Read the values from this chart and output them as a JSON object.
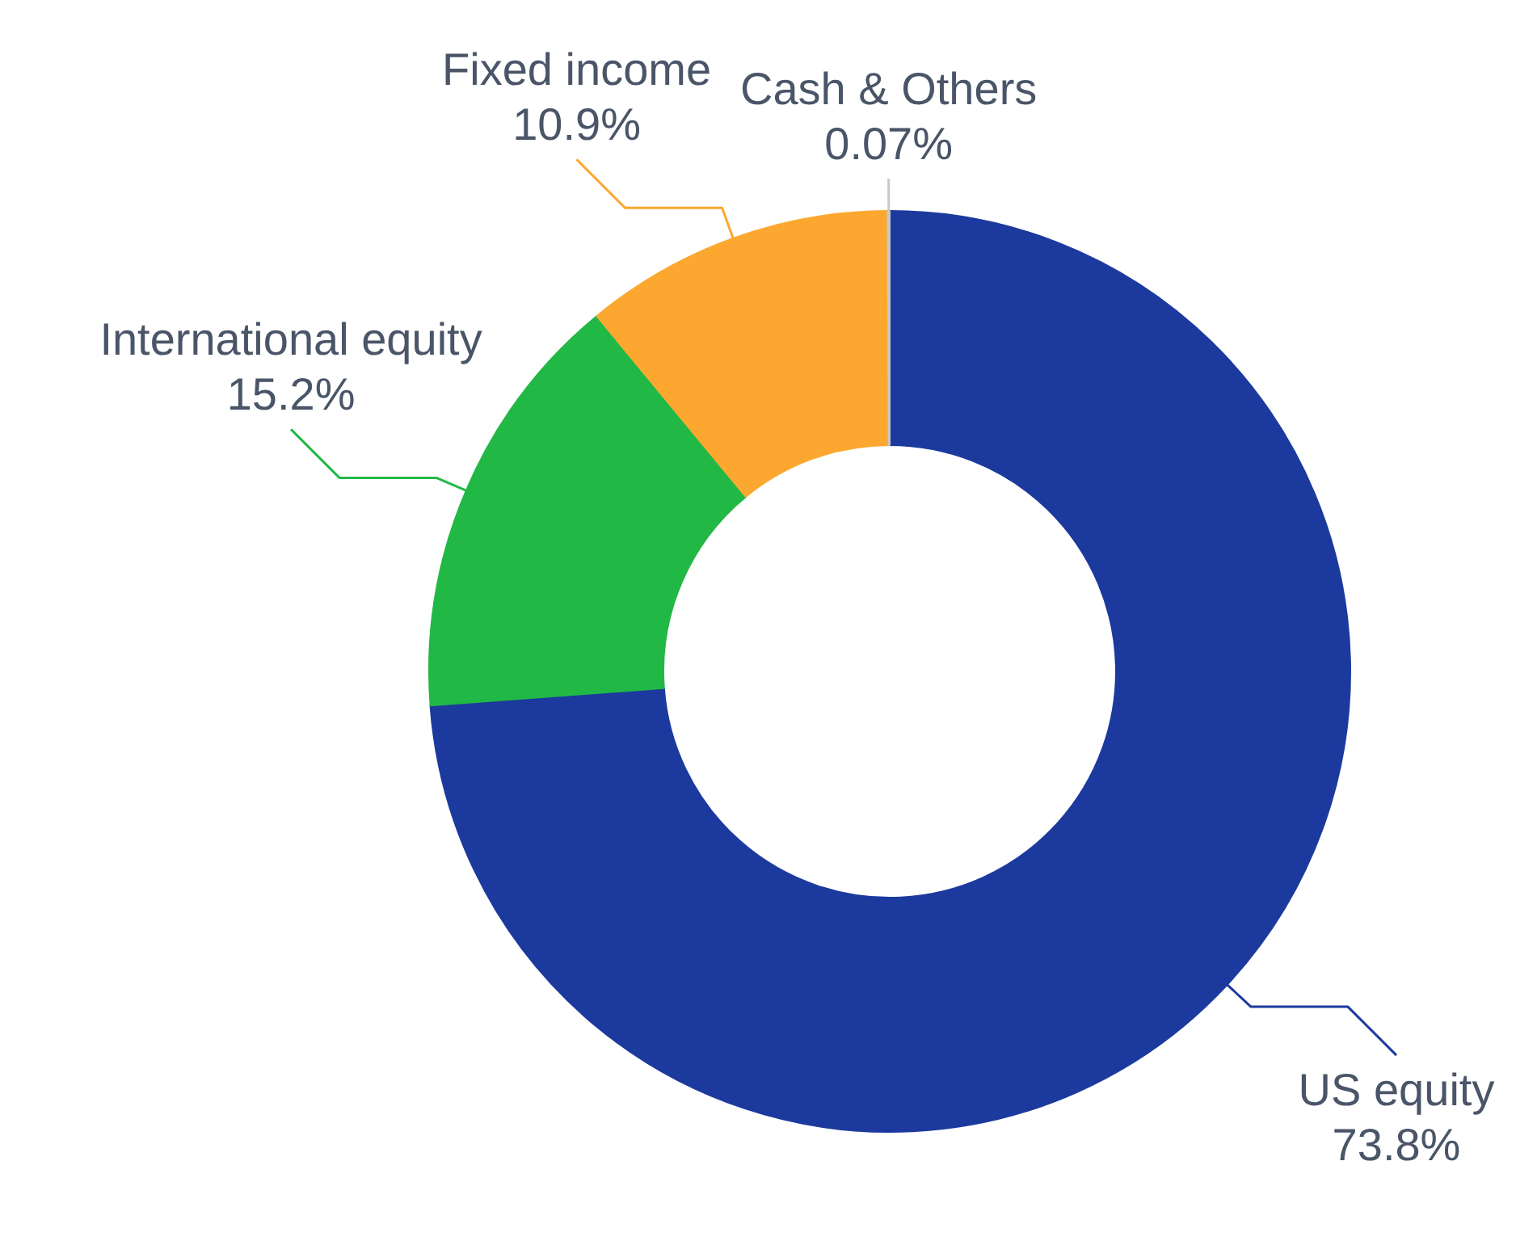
{
  "chart_data": {
    "type": "donut",
    "categories": [
      "US equity",
      "International equity",
      "Fixed income",
      "Cash & Others"
    ],
    "values": [
      73.8,
      15.2,
      10.9,
      0.07
    ],
    "value_labels": [
      "73.8%",
      "15.2%",
      "10.9%",
      "0.07%"
    ],
    "colors": [
      "#1c3a9e",
      "#22b846",
      "#fca830",
      "#c8c8c8"
    ]
  }
}
